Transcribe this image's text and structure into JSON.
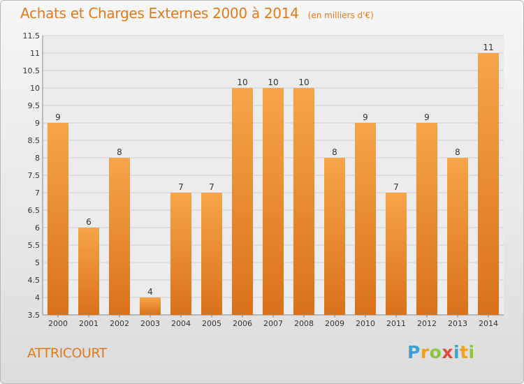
{
  "title": "Achats et Charges Externes 2000 à 2014",
  "unit": "(en milliers d'€)",
  "commune": "ATTRICOURT",
  "logo": {
    "letters": [
      "P",
      "r",
      "o",
      "x",
      "i",
      "t",
      "i"
    ]
  },
  "colors": {
    "bar": "#f0922e",
    "bar_dark": "#d9721a",
    "title": "#e07b1c",
    "grid": "#d0d0d0"
  },
  "chart_data": {
    "type": "bar",
    "title": "Achats et Charges Externes 2000 à 2014",
    "subtitle": "(en milliers d'€)",
    "xlabel": "",
    "ylabel": "",
    "categories": [
      "2000",
      "2001",
      "2002",
      "2003",
      "2004",
      "2005",
      "2006",
      "2007",
      "2008",
      "2009",
      "2010",
      "2011",
      "2012",
      "2013",
      "2014"
    ],
    "values": [
      9,
      6,
      8,
      4,
      7,
      7,
      10,
      10,
      10,
      8,
      9,
      7,
      9,
      8,
      11
    ],
    "data_labels": [
      "9",
      "6",
      "8",
      "4",
      "7",
      "7",
      "10",
      "10",
      "10",
      "8",
      "9",
      "7",
      "9",
      "8",
      "11"
    ],
    "ylim": [
      3.5,
      11.5
    ],
    "yticks": [
      "3.5",
      "4",
      "4.5",
      "5",
      "5.5",
      "6",
      "6.5",
      "7",
      "7.5",
      "8",
      "8.5",
      "9",
      "9.5",
      "10",
      "10.5",
      "11",
      "11.5"
    ],
    "grid": true,
    "legend": false
  }
}
